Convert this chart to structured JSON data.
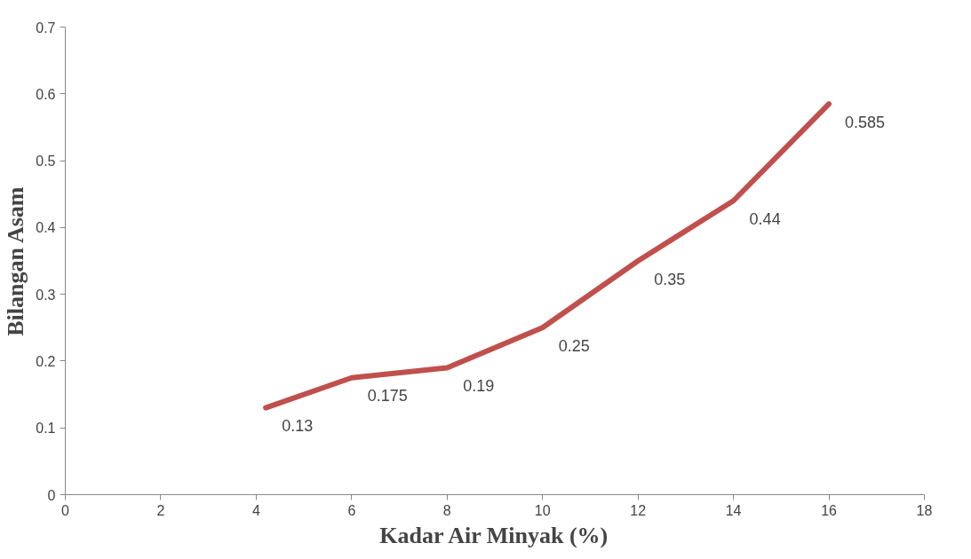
{
  "chart_data": {
    "type": "line",
    "xlabel": "Kadar Air Minyak (%)",
    "ylabel": "Bilangan Asam",
    "x": [
      4.2,
      6,
      8,
      10,
      12,
      14,
      16
    ],
    "series": [
      {
        "color": "#c0504d",
        "values": [
          0.13,
          0.175,
          0.19,
          0.25,
          0.35,
          0.44,
          0.585
        ]
      }
    ],
    "xlim": [
      0,
      18
    ],
    "xticks": [
      0,
      2,
      4,
      6,
      8,
      10,
      12,
      14,
      16,
      18
    ],
    "ylim": [
      0,
      0.7
    ],
    "yticks": [
      0,
      0.1,
      0.2,
      0.3,
      0.4,
      0.5,
      0.6,
      0.7
    ],
    "data_labels": true,
    "grid": false,
    "marker": "none",
    "line_style": "solid"
  }
}
